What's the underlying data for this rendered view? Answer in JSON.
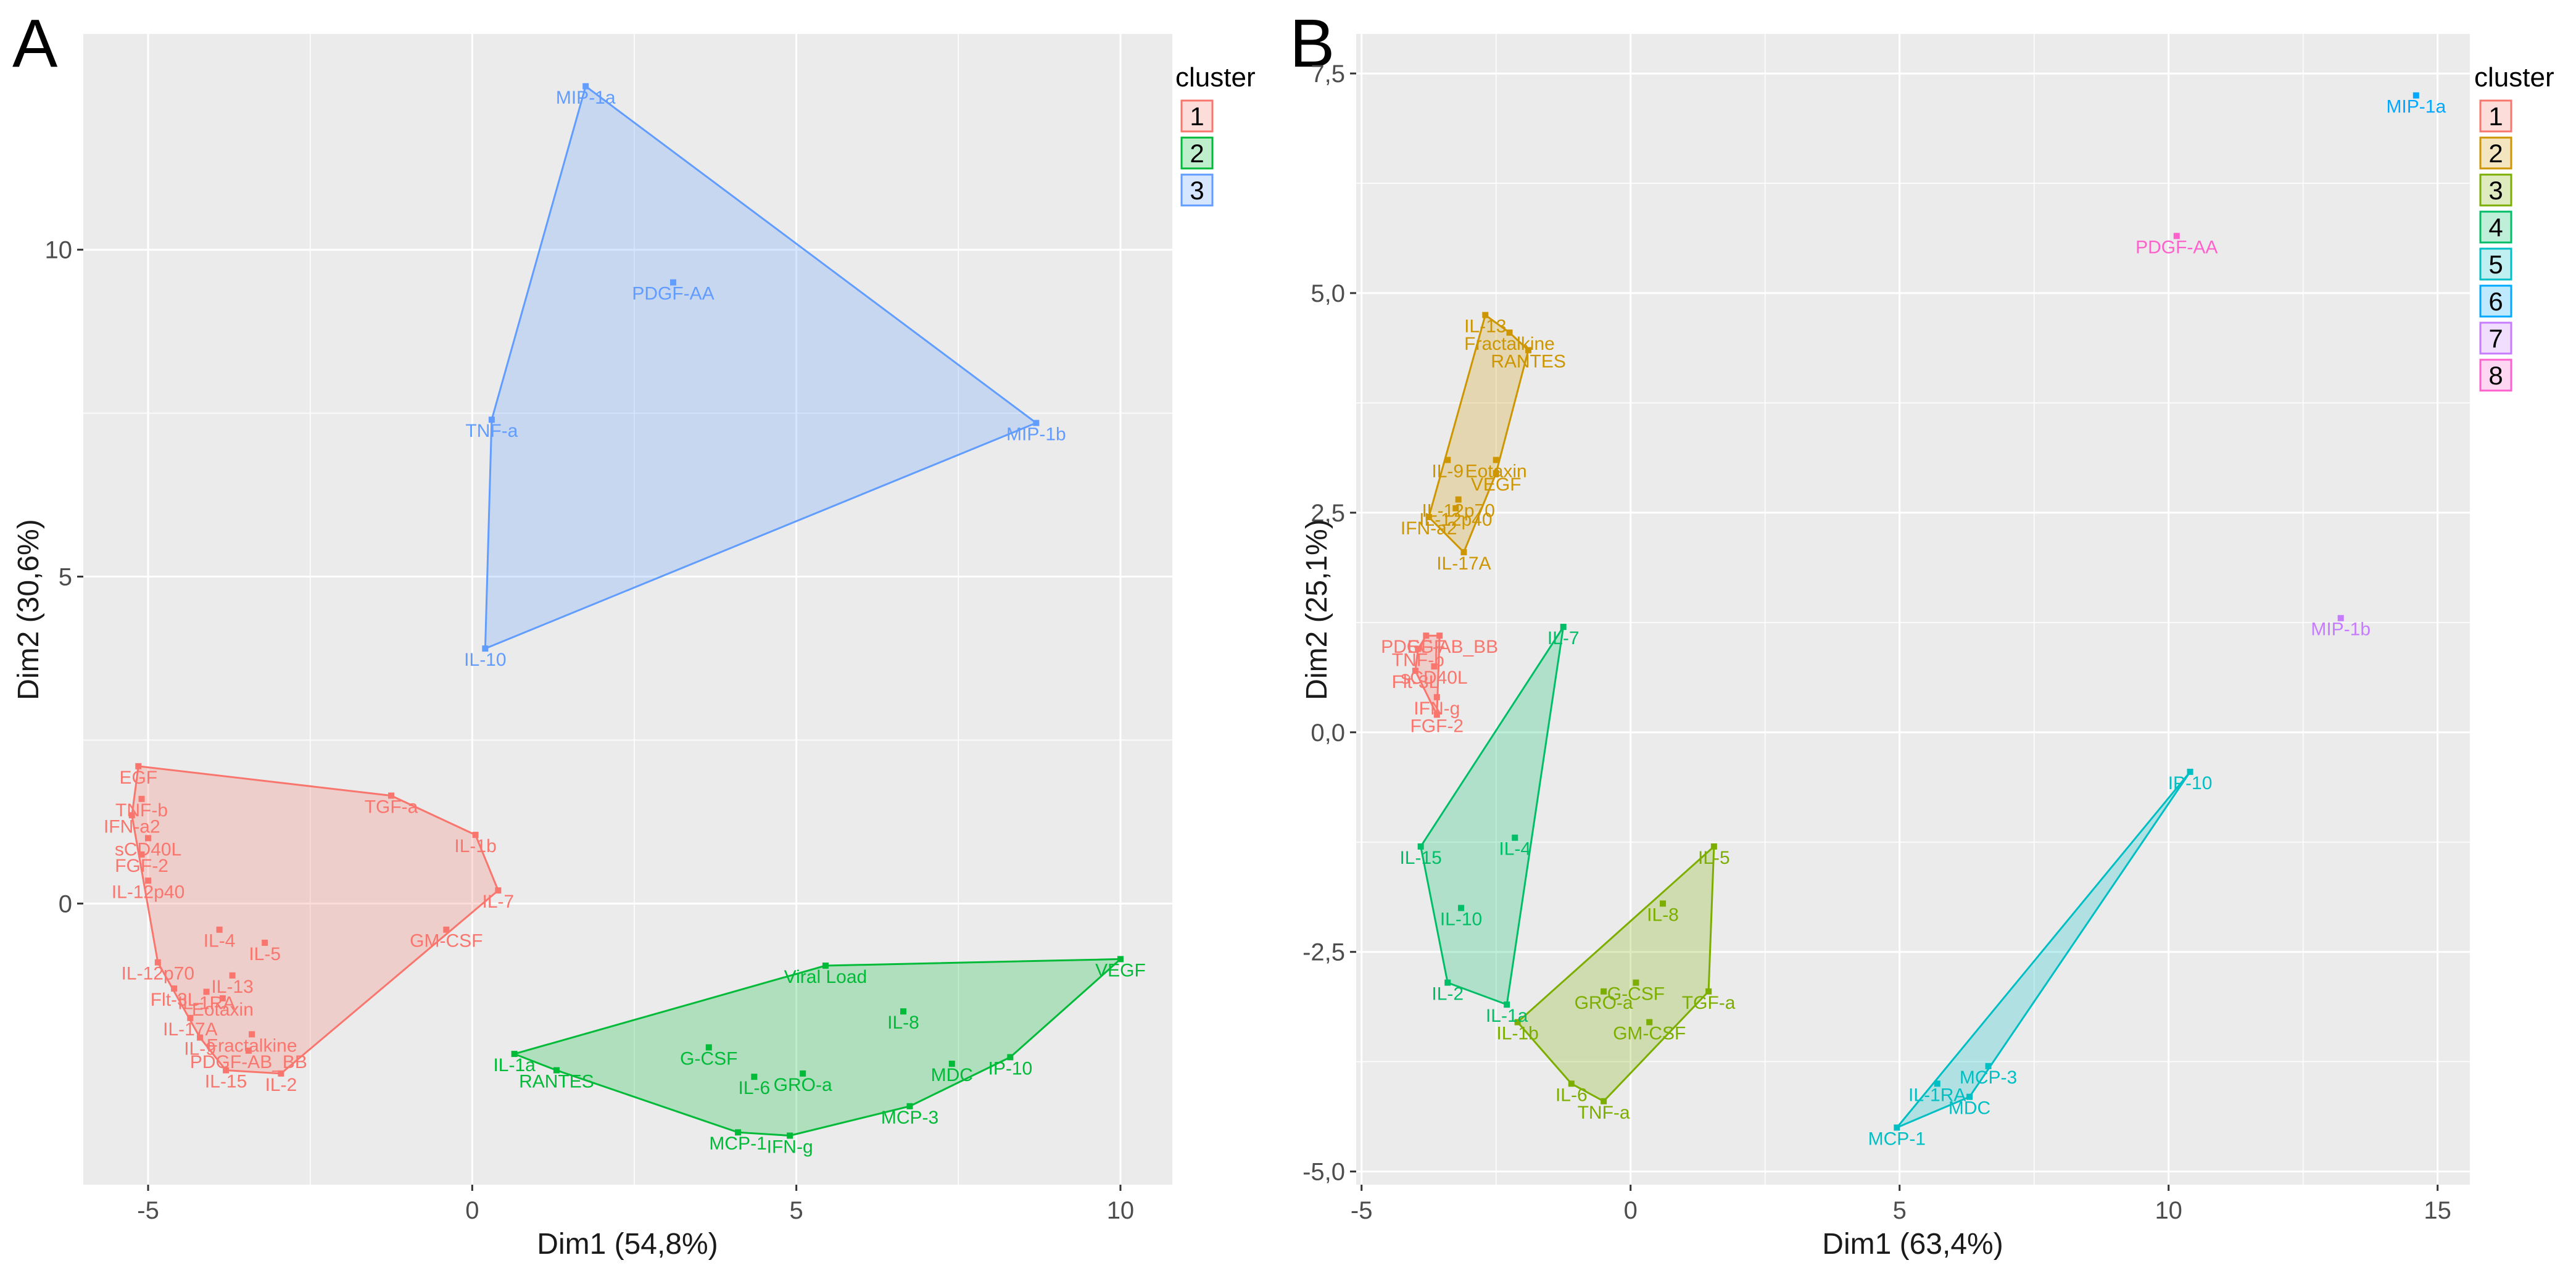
{
  "figure": {
    "panels": [
      "A",
      "B"
    ]
  },
  "chart_data": [
    {
      "type": "scatter",
      "panel": "A",
      "xlabel": "Dim1 (54,8%)",
      "ylabel": "Dim2 (30,6%)",
      "xlim": [
        -6.0,
        10.8
      ],
      "ylim": [
        -4.3,
        13.3
      ],
      "xticks": [
        -5,
        0,
        5,
        10
      ],
      "yticks": [
        0,
        5,
        10
      ],
      "xtick_labels": [
        "-5",
        "0",
        "5",
        "10"
      ],
      "ytick_labels": [
        "0",
        "5",
        "10"
      ],
      "legend": {
        "title": "cluster",
        "position": "right"
      },
      "clusters": [
        {
          "id": "1",
          "color": "#F8766D",
          "fill": "#F8766D"
        },
        {
          "id": "2",
          "color": "#00BA38",
          "fill": "#00BA38"
        },
        {
          "id": "3",
          "color": "#619CFF",
          "fill": "#619CFF"
        }
      ],
      "points": [
        {
          "label": "EGF",
          "x": -5.15,
          "y": 2.1,
          "cluster": "1"
        },
        {
          "label": "TNF-b",
          "x": -5.1,
          "y": 1.6,
          "cluster": "1"
        },
        {
          "label": "IFN-a2",
          "x": -5.25,
          "y": 1.35,
          "cluster": "1"
        },
        {
          "label": "sCD40L",
          "x": -5.0,
          "y": 1.0,
          "cluster": "1"
        },
        {
          "label": "FGF-2",
          "x": -5.1,
          "y": 0.75,
          "cluster": "1"
        },
        {
          "label": "IL-12p40",
          "x": -5.0,
          "y": 0.35,
          "cluster": "1"
        },
        {
          "label": "TGF-a",
          "x": -1.25,
          "y": 1.65,
          "cluster": "1"
        },
        {
          "label": "IL-1b",
          "x": 0.05,
          "y": 1.05,
          "cluster": "1"
        },
        {
          "label": "IL-7",
          "x": 0.4,
          "y": 0.2,
          "cluster": "1"
        },
        {
          "label": "GM-CSF",
          "x": -0.4,
          "y": -0.4,
          "cluster": "1"
        },
        {
          "label": "IL-4",
          "x": -3.9,
          "y": -0.4,
          "cluster": "1"
        },
        {
          "label": "IL-5",
          "x": -3.2,
          "y": -0.6,
          "cluster": "1"
        },
        {
          "label": "IL-12p70",
          "x": -4.85,
          "y": -0.9,
          "cluster": "1"
        },
        {
          "label": "IL-13",
          "x": -3.7,
          "y": -1.1,
          "cluster": "1"
        },
        {
          "label": "Flt-3L",
          "x": -4.6,
          "y": -1.3,
          "cluster": "1"
        },
        {
          "label": "IL-1RA",
          "x": -4.1,
          "y": -1.35,
          "cluster": "1"
        },
        {
          "label": "Eotaxin",
          "x": -3.85,
          "y": -1.45,
          "cluster": "1"
        },
        {
          "label": "IL-17A",
          "x": -4.35,
          "y": -1.75,
          "cluster": "1"
        },
        {
          "label": "IL-9",
          "x": -4.2,
          "y": -2.05,
          "cluster": "1"
        },
        {
          "label": "Fractalkine",
          "x": -3.4,
          "y": -2.0,
          "cluster": "1"
        },
        {
          "label": "PDGF-AB_BB",
          "x": -3.45,
          "y": -2.25,
          "cluster": "1"
        },
        {
          "label": "IL-15",
          "x": -3.8,
          "y": -2.55,
          "cluster": "1"
        },
        {
          "label": "IL-2",
          "x": -2.95,
          "y": -2.6,
          "cluster": "1"
        },
        {
          "label": "Viral Load",
          "x": 5.45,
          "y": -0.95,
          "cluster": "2"
        },
        {
          "label": "VEGF",
          "x": 10.0,
          "y": -0.85,
          "cluster": "2"
        },
        {
          "label": "IL-8",
          "x": 6.65,
          "y": -1.65,
          "cluster": "2"
        },
        {
          "label": "G-CSF",
          "x": 3.65,
          "y": -2.2,
          "cluster": "2"
        },
        {
          "label": "IL-1a",
          "x": 0.65,
          "y": -2.3,
          "cluster": "2"
        },
        {
          "label": "MDC",
          "x": 7.4,
          "y": -2.45,
          "cluster": "2"
        },
        {
          "label": "IP-10",
          "x": 8.3,
          "y": -2.35,
          "cluster": "2"
        },
        {
          "label": "GRO-a",
          "x": 5.1,
          "y": -2.6,
          "cluster": "2"
        },
        {
          "label": "IL-6",
          "x": 4.35,
          "y": -2.65,
          "cluster": "2"
        },
        {
          "label": "RANTES",
          "x": 1.3,
          "y": -2.55,
          "cluster": "2"
        },
        {
          "label": "MCP-3",
          "x": 6.75,
          "y": -3.1,
          "cluster": "2"
        },
        {
          "label": "MCP-1",
          "x": 4.1,
          "y": -3.5,
          "cluster": "2"
        },
        {
          "label": "IFN-g",
          "x": 4.9,
          "y": -3.55,
          "cluster": "2"
        },
        {
          "label": "MIP-1a",
          "x": 1.75,
          "y": 12.5,
          "cluster": "3"
        },
        {
          "label": "PDGF-AA",
          "x": 3.1,
          "y": 9.5,
          "cluster": "3"
        },
        {
          "label": "TNF-a",
          "x": 0.3,
          "y": 7.4,
          "cluster": "3"
        },
        {
          "label": "MIP-1b",
          "x": 8.7,
          "y": 7.35,
          "cluster": "3"
        },
        {
          "label": "IL-10",
          "x": 0.2,
          "y": 3.9,
          "cluster": "3"
        }
      ]
    },
    {
      "type": "scatter",
      "panel": "B",
      "xlabel": "Dim1 (63,4%)",
      "ylabel": "Dim2 (25,1%)",
      "xlim": [
        -5.1,
        15.6
      ],
      "ylim": [
        -5.15,
        7.95
      ],
      "xticks": [
        -5,
        0,
        5,
        10,
        15
      ],
      "yticks": [
        -5,
        -2.5,
        0,
        2.5,
        5,
        7.5
      ],
      "xtick_labels": [
        "-5",
        "0",
        "5",
        "10",
        "15"
      ],
      "ytick_labels": [
        "-5,0",
        "-2,5",
        "0,0",
        "2,5",
        "5,0",
        "7,5"
      ],
      "legend": {
        "title": "cluster",
        "position": "right"
      },
      "clusters": [
        {
          "id": "1",
          "color": "#F8766D",
          "fill": "#F8766D"
        },
        {
          "id": "2",
          "color": "#CD9600",
          "fill": "#CD9600"
        },
        {
          "id": "3",
          "color": "#7CAE00",
          "fill": "#7CAE00"
        },
        {
          "id": "4",
          "color": "#00BE67",
          "fill": "#00BE67"
        },
        {
          "id": "5",
          "color": "#00BFC4",
          "fill": "#00BFC4"
        },
        {
          "id": "6",
          "color": "#00A9FF",
          "fill": "#00A9FF"
        },
        {
          "id": "7",
          "color": "#C77CFF",
          "fill": "#C77CFF"
        },
        {
          "id": "8",
          "color": "#FF61CC",
          "fill": "#FF61CC"
        }
      ],
      "points": [
        {
          "label": "TNF-b",
          "x": -3.95,
          "y": 0.95,
          "cluster": "1"
        },
        {
          "label": "EGF",
          "x": -3.8,
          "y": 1.1,
          "cluster": "1"
        },
        {
          "label": "PDGF-AB_BB",
          "x": -3.55,
          "y": 1.1,
          "cluster": "1"
        },
        {
          "label": "Flt-3L",
          "x": -4.0,
          "y": 0.7,
          "cluster": "1"
        },
        {
          "label": "sCD40L",
          "x": -3.65,
          "y": 0.75,
          "cluster": "1"
        },
        {
          "label": "IFN-g",
          "x": -3.6,
          "y": 0.4,
          "cluster": "1"
        },
        {
          "label": "FGF-2",
          "x": -3.6,
          "y": 0.2,
          "cluster": "1"
        },
        {
          "label": "IL-13",
          "x": -2.7,
          "y": 4.75,
          "cluster": "2"
        },
        {
          "label": "Fractalkine",
          "x": -2.25,
          "y": 4.55,
          "cluster": "2"
        },
        {
          "label": "RANTES",
          "x": -1.9,
          "y": 4.35,
          "cluster": "2"
        },
        {
          "label": "IL-9",
          "x": -3.4,
          "y": 3.1,
          "cluster": "2"
        },
        {
          "label": "Eotaxin",
          "x": -2.5,
          "y": 3.1,
          "cluster": "2"
        },
        {
          "label": "VEGF",
          "x": -2.5,
          "y": 2.95,
          "cluster": "2"
        },
        {
          "label": "IL-12p70",
          "x": -3.2,
          "y": 2.65,
          "cluster": "2"
        },
        {
          "label": "IL-12p40",
          "x": -3.25,
          "y": 2.55,
          "cluster": "2"
        },
        {
          "label": "IFN-a2",
          "x": -3.75,
          "y": 2.45,
          "cluster": "2"
        },
        {
          "label": "IL-17A",
          "x": -3.1,
          "y": 2.05,
          "cluster": "2"
        },
        {
          "label": "IL-5",
          "x": 1.55,
          "y": -1.3,
          "cluster": "3"
        },
        {
          "label": "IL-8",
          "x": 0.6,
          "y": -1.95,
          "cluster": "3"
        },
        {
          "label": "G-CSF",
          "x": 0.1,
          "y": -2.85,
          "cluster": "3"
        },
        {
          "label": "TGF-a",
          "x": 1.45,
          "y": -2.95,
          "cluster": "3"
        },
        {
          "label": "GRO-a",
          "x": -0.5,
          "y": -2.95,
          "cluster": "3"
        },
        {
          "label": "GM-CSF",
          "x": 0.35,
          "y": -3.3,
          "cluster": "3"
        },
        {
          "label": "IL-1b",
          "x": -2.1,
          "y": -3.3,
          "cluster": "3"
        },
        {
          "label": "IL-6",
          "x": -1.1,
          "y": -4.0,
          "cluster": "3"
        },
        {
          "label": "TNF-a",
          "x": -0.5,
          "y": -4.2,
          "cluster": "3"
        },
        {
          "label": "IL-7",
          "x": -1.25,
          "y": 1.2,
          "cluster": "4"
        },
        {
          "label": "IL-4",
          "x": -2.15,
          "y": -1.2,
          "cluster": "4"
        },
        {
          "label": "IL-15",
          "x": -3.9,
          "y": -1.3,
          "cluster": "4"
        },
        {
          "label": "IL-10",
          "x": -3.15,
          "y": -2.0,
          "cluster": "4"
        },
        {
          "label": "IL-2",
          "x": -3.4,
          "y": -2.85,
          "cluster": "4"
        },
        {
          "label": "IL-1a",
          "x": -2.3,
          "y": -3.1,
          "cluster": "4"
        },
        {
          "label": "IP-10",
          "x": 10.4,
          "y": -0.45,
          "cluster": "5"
        },
        {
          "label": "MCP-3",
          "x": 6.65,
          "y": -3.8,
          "cluster": "5"
        },
        {
          "label": "IL-1RA",
          "x": 5.7,
          "y": -4.0,
          "cluster": "5"
        },
        {
          "label": "MDC",
          "x": 6.3,
          "y": -4.15,
          "cluster": "5"
        },
        {
          "label": "MCP-1",
          "x": 4.95,
          "y": -4.5,
          "cluster": "5"
        },
        {
          "label": "MIP-1a",
          "x": 14.6,
          "y": 7.25,
          "cluster": "6"
        },
        {
          "label": "MIP-1b",
          "x": 13.2,
          "y": 1.3,
          "cluster": "7"
        },
        {
          "label": "PDGF-AA",
          "x": 10.15,
          "y": 5.65,
          "cluster": "8"
        }
      ]
    }
  ]
}
